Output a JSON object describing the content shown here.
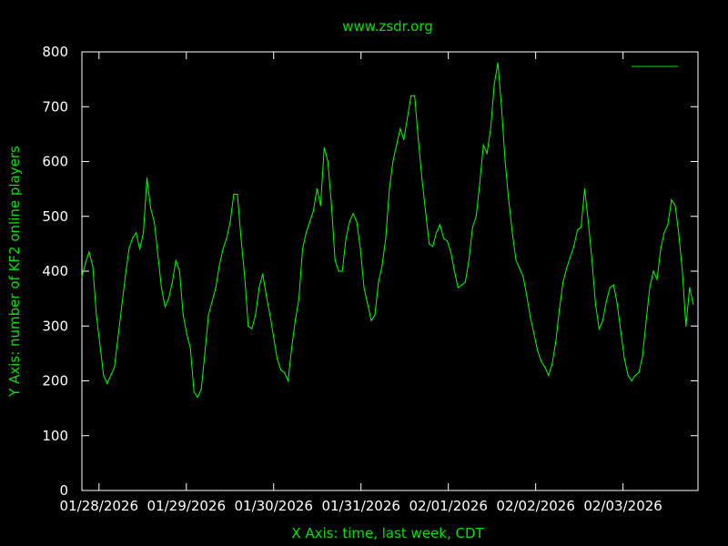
{
  "chart_data": {
    "type": "line",
    "title": "www.zsdr.org",
    "xlabel": "X Axis: time, last week, CDT",
    "ylabel": "Y Axis: number of KF2 online players",
    "x_units": "hours since 01/28/2026 00:00",
    "xlim": [
      -4.7,
      164.6
    ],
    "ylim": [
      0,
      800
    ],
    "yticks": [
      0,
      100,
      200,
      300,
      400,
      500,
      600,
      700,
      800
    ],
    "xticks": [
      {
        "value": 0,
        "label": "01/28/2026"
      },
      {
        "value": 24,
        "label": "01/29/2026"
      },
      {
        "value": 48,
        "label": "01/30/2026"
      },
      {
        "value": 72,
        "label": "01/31/2026"
      },
      {
        "value": 96,
        "label": "02/01/2026"
      },
      {
        "value": 120,
        "label": "02/02/2026"
      },
      {
        "value": 144,
        "label": "02/03/2026"
      }
    ],
    "grid": false,
    "legend": {
      "placement": "top-right",
      "entries": [
        ""
      ]
    },
    "series": [
      {
        "name": "",
        "color": "#00ff00",
        "x_start": -4.7,
        "x_step": 0.994,
        "values": [
          390,
          415,
          435,
          410,
          320,
          265,
          210,
          195,
          210,
          225,
          280,
          335,
          390,
          440,
          460,
          470,
          440,
          470,
          570,
          515,
          490,
          430,
          370,
          335,
          350,
          380,
          420,
          400,
          320,
          285,
          260,
          180,
          170,
          185,
          250,
          320,
          345,
          370,
          410,
          440,
          460,
          490,
          540,
          540,
          460,
          390,
          300,
          295,
          320,
          370,
          395,
          355,
          320,
          280,
          240,
          220,
          215,
          200,
          260,
          310,
          350,
          440,
          470,
          490,
          510,
          550,
          520,
          625,
          600,
          520,
          420,
          400,
          400,
          460,
          490,
          505,
          490,
          440,
          370,
          340,
          310,
          320,
          380,
          410,
          460,
          550,
          600,
          630,
          660,
          640,
          680,
          720,
          720,
          640,
          570,
          510,
          450,
          445,
          470,
          485,
          460,
          455,
          435,
          400,
          370,
          375,
          380,
          420,
          480,
          500,
          560,
          630,
          615,
          660,
          740,
          780,
          700,
          600,
          530,
          470,
          420,
          405,
          390,
          355,
          315,
          285,
          255,
          235,
          225,
          210,
          230,
          270,
          330,
          380,
          405,
          425,
          445,
          475,
          480,
          550,
          490,
          420,
          340,
          295,
          310,
          345,
          370,
          375,
          340,
          290,
          240,
          210,
          200,
          210,
          215,
          245,
          310,
          370,
          400,
          385,
          440,
          470,
          485,
          530,
          520,
          470,
          400,
          300,
          370,
          340
        ]
      }
    ]
  }
}
